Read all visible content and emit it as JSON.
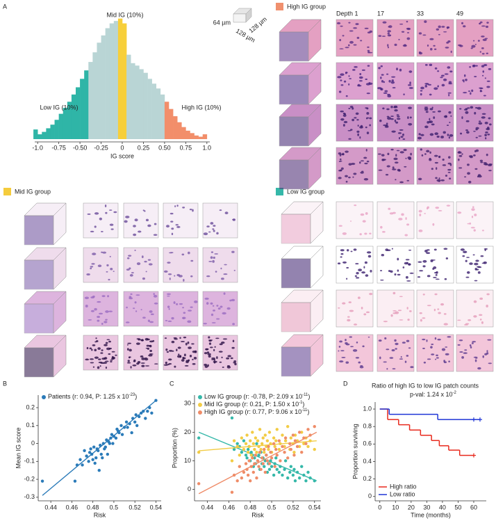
{
  "panel_labels": [
    "A",
    "B",
    "C",
    "D"
  ],
  "cube_legend": {
    "depth": "64 µm",
    "width": "128 µm",
    "length": "128 µm"
  },
  "groups": [
    {
      "name": "High IG group",
      "color": "#f0906e"
    },
    {
      "name": "Mid IG group",
      "color": "#f5cc3c"
    },
    {
      "name": "Low IG group",
      "color": "#35b8a9"
    }
  ],
  "depth_labels": [
    "Depth 1",
    "17",
    "33",
    "49"
  ],
  "chart_data": [
    {
      "type": "histogram",
      "xlabel": "IG score",
      "color": "#b9d5d5",
      "bins": [
        -1.05,
        -1.0,
        -0.95,
        -0.9,
        -0.85,
        -0.8,
        -0.75,
        -0.7,
        -0.65,
        -0.6,
        -0.55,
        -0.5,
        -0.45,
        -0.4,
        -0.35,
        -0.3,
        -0.25,
        -0.2,
        -0.15,
        -0.1,
        -0.05,
        0,
        0.05,
        0.1,
        0.15,
        0.2,
        0.25,
        0.3,
        0.35,
        0.4,
        0.45,
        0.5,
        0.55,
        0.6,
        0.65,
        0.7,
        0.75,
        0.8,
        0.85,
        0.9,
        0.95,
        1.0,
        1.05
      ],
      "counts": [
        8,
        4,
        6,
        9,
        12,
        16,
        21,
        26,
        31,
        37,
        43,
        50,
        57,
        64,
        72,
        80,
        86,
        92,
        96,
        98,
        100,
        96,
        70,
        63,
        61,
        58,
        55,
        50,
        46,
        42,
        37,
        31,
        25,
        19,
        14,
        10,
        7,
        5,
        3,
        2,
        4,
        0
      ],
      "regions": [
        {
          "label": "Low IG (10%)",
          "color": "#2fb5a7",
          "xlim": [
            -1.05,
            -0.4
          ]
        },
        {
          "label": "Mid IG (10%)",
          "color": "#f7cf3a",
          "xlim": [
            -0.05,
            0.05
          ]
        },
        {
          "label": "High IG (10%)",
          "color": "#f28e6a",
          "xlim": [
            0.5,
            1.05
          ]
        }
      ],
      "xlim": [
        -1.1,
        1.1
      ],
      "ylim": [
        0,
        105
      ],
      "xticks": [
        {
          "value": -1,
          "label": "-1.0"
        },
        -0.75,
        {
          "value": -0.5,
          "label": "-0.50"
        },
        -0.25,
        0,
        0.25,
        {
          "value": 0.5,
          "label": "0.50"
        },
        0.75,
        {
          "value": 1,
          "label": "1.0"
        }
      ]
    },
    {
      "type": "scatter",
      "xlabel": "Risk",
      "ylabel": "Mean IG score",
      "xlim": [
        0.428,
        0.545
      ],
      "ylim": [
        -0.32,
        0.27
      ],
      "xticks": [
        0.44,
        0.46,
        0.48,
        0.5,
        0.52,
        0.54
      ],
      "yticks": [
        -0.3,
        -0.2,
        -0.1,
        0,
        0.1,
        0.2
      ],
      "x": [
        0.432,
        0.463,
        0.465,
        0.468,
        0.47,
        0.472,
        0.474,
        0.476,
        0.477,
        0.478,
        0.479,
        0.48,
        0.481,
        0.482,
        0.483,
        0.484,
        0.485,
        0.486,
        0.487,
        0.488,
        0.489,
        0.49,
        0.491,
        0.492,
        0.493,
        0.494,
        0.495,
        0.496,
        0.497,
        0.498,
        0.499,
        0.5,
        0.502,
        0.503,
        0.504,
        0.505,
        0.507,
        0.508,
        0.51,
        0.512,
        0.513,
        0.515,
        0.517,
        0.518,
        0.52,
        0.521,
        0.522,
        0.524,
        0.526,
        0.528,
        0.53,
        0.532,
        0.534,
        0.536,
        0.54
      ],
      "series": [
        {
          "name": "Patients (r: 0.94, P: 1.25 x 10",
          "name_sup": "-23",
          "name_end": ")",
          "color": "#2b7bb9",
          "values": [
            -0.21,
            -0.21,
            -0.12,
            -0.09,
            -0.12,
            -0.04,
            -0.07,
            -0.1,
            -0.05,
            -0.03,
            -0.06,
            -0.09,
            -0.02,
            -0.11,
            -0.08,
            -0.03,
            -0.04,
            -0.15,
            -0.01,
            -0.06,
            -0.08,
            0.0,
            -0.03,
            -0.02,
            0.02,
            -0.06,
            0.01,
            0.0,
            0.03,
            0.05,
            0.0,
            0.04,
            0.03,
            0.08,
            0.07,
            0.06,
            0.1,
            0.05,
            0.09,
            0.12,
            0.09,
            0.11,
            0.06,
            0.14,
            0.12,
            0.16,
            0.1,
            0.15,
            0.17,
            0.18,
            0.14,
            0.18,
            0.2,
            0.17,
            0.24
          ],
          "fit": {
            "x": [
              0.432,
              0.54
            ],
            "y": [
              -0.29,
              0.24
            ]
          }
        }
      ]
    },
    {
      "type": "scatter",
      "xlabel": "Risk",
      "ylabel": "Proportion (%)",
      "xlim": [
        0.428,
        0.546
      ],
      "ylim": [
        -4,
        33
      ],
      "xticks": [
        0.44,
        0.46,
        0.48,
        0.5,
        0.52,
        0.54
      ],
      "yticks": [
        0,
        10,
        20,
        30
      ],
      "x": [
        0.432,
        0.463,
        0.465,
        0.468,
        0.47,
        0.472,
        0.474,
        0.476,
        0.477,
        0.478,
        0.479,
        0.48,
        0.481,
        0.482,
        0.483,
        0.484,
        0.485,
        0.486,
        0.487,
        0.488,
        0.489,
        0.49,
        0.491,
        0.492,
        0.493,
        0.494,
        0.495,
        0.496,
        0.497,
        0.498,
        0.499,
        0.5,
        0.502,
        0.503,
        0.504,
        0.505,
        0.507,
        0.508,
        0.51,
        0.512,
        0.513,
        0.515,
        0.517,
        0.518,
        0.52,
        0.521,
        0.522,
        0.524,
        0.526,
        0.528,
        0.53,
        0.532,
        0.534,
        0.536,
        0.54
      ],
      "series": [
        {
          "name": "Low IG group (r: -0.78, P: 2.09 x 10",
          "name_sup": "-11",
          "name_end": ")",
          "color": "#35b8a9",
          "values": [
            18,
            25,
            14,
            16,
            15,
            13,
            17,
            12,
            11,
            14,
            15,
            10,
            13,
            12,
            8,
            11,
            9,
            16,
            10,
            12,
            7,
            13,
            9,
            11,
            8,
            10,
            12,
            6,
            9,
            7,
            10,
            8,
            5,
            9,
            11,
            7,
            6,
            8,
            5,
            7,
            10,
            4,
            6,
            8,
            5,
            7,
            3,
            6,
            4,
            8,
            5,
            3,
            6,
            4,
            3
          ],
          "fit": {
            "x": [
              0.432,
              0.542
            ],
            "y": [
              20,
              3
            ]
          }
        },
        {
          "name": "Mid IG group (r: 0.21, P: 1.50 x 10",
          "name_sup": "-1",
          "name_end": ")",
          "color": "#f2cc45",
          "values": [
            13,
            10,
            17,
            15,
            12,
            18,
            14,
            16,
            19,
            13,
            15,
            17,
            12,
            20,
            16,
            14,
            18,
            13,
            17,
            15,
            21,
            14,
            16,
            18,
            13,
            19,
            15,
            17,
            14,
            20,
            16,
            13,
            18,
            15,
            17,
            21,
            14,
            16,
            19,
            15,
            17,
            22,
            14,
            18,
            16,
            13,
            19,
            17,
            15,
            20,
            16,
            18,
            15,
            17,
            14
          ],
          "fit": {
            "x": [
              0.432,
              0.542
            ],
            "y": [
              13.5,
              17
            ]
          }
        },
        {
          "name": "High IG group (r: 0.77, P: 9.06 x 10",
          "name_sup": "-11",
          "name_end": ")",
          "color": "#ef8c68",
          "values": [
            2,
            -1,
            5,
            3,
            8,
            4,
            6,
            9,
            7,
            5,
            10,
            3,
            8,
            11,
            6,
            9,
            12,
            4,
            10,
            8,
            13,
            7,
            11,
            9,
            14,
            6,
            12,
            10,
            15,
            9,
            13,
            11,
            16,
            8,
            14,
            12,
            17,
            10,
            15,
            13,
            18,
            11,
            16,
            14,
            19,
            12,
            17,
            15,
            20,
            13,
            18,
            16,
            21,
            19,
            22
          ],
          "fit": {
            "x": [
              0.432,
              0.542
            ],
            "y": [
              -1.5,
              20
            ]
          }
        }
      ]
    },
    {
      "type": "survival",
      "title": "Ratio of high IG to low IG patch counts",
      "subtitle": "p-val: 1.24 x 10",
      "subtitle_sup": "-2",
      "xlabel": "Time (months)",
      "ylabel": "Proportion surviving",
      "xlim": [
        -3,
        68
      ],
      "ylim": [
        -0.05,
        1.08
      ],
      "xticks": [
        0,
        10,
        20,
        30,
        40,
        50,
        60
      ],
      "yticks": [
        0,
        0.2,
        0.4,
        0.6,
        0.8,
        {
          "value": 1,
          "label": "1.0"
        }
      ],
      "series": [
        {
          "name": "High ratio",
          "color": "#e8291c",
          "x": [
            0,
            5,
            12,
            19,
            26,
            33,
            38,
            44,
            51,
            60
          ],
          "values": [
            1,
            0.88,
            0.82,
            0.76,
            0.7,
            0.64,
            0.58,
            0.53,
            0.47,
            0.47
          ],
          "censor_x": [
            60
          ]
        },
        {
          "name": "Low ratio",
          "color": "#1f35d6",
          "x": [
            0,
            6,
            37,
            60,
            64
          ],
          "values": [
            1,
            0.94,
            0.88,
            0.88,
            0.88
          ],
          "censor_x": [
            60,
            64
          ]
        }
      ]
    }
  ]
}
